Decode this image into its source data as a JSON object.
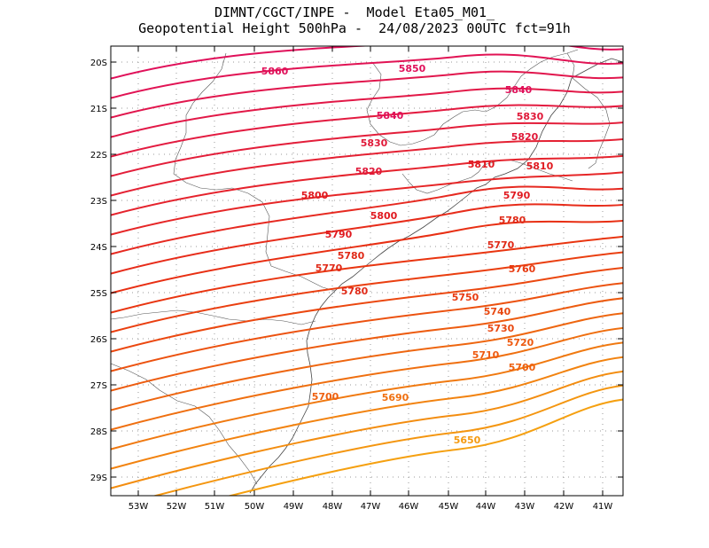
{
  "title": {
    "line1": "DIMNT/CGCT/INPE -  Model Eta05_M01_",
    "line2": "Geopotential Height 500hPa -  24/08/2023 00UTC fct=91h"
  },
  "map_data": {
    "lon_range": [
      -53.6,
      -40.5
    ],
    "lat_range": [
      -29.4,
      -19.8
    ],
    "lat_ticks": [
      "20S",
      "21S",
      "22S",
      "23S",
      "24S",
      "25S",
      "26S",
      "27S",
      "28S",
      "29S"
    ],
    "lon_ticks": [
      "53W",
      "52W",
      "51W",
      "50W",
      "49W",
      "48W",
      "47W",
      "46W",
      "45W",
      "44W",
      "43W",
      "42W",
      "41W"
    ],
    "contour_labels": [
      {
        "text": "5860",
        "color": "#e0105a"
      },
      {
        "text": "5850",
        "color": "#e0105a"
      },
      {
        "text": "5840",
        "color": "#e0105a"
      },
      {
        "text": "5840",
        "color": "#e0105a"
      },
      {
        "text": "5830",
        "color": "#e01838"
      },
      {
        "text": "5830",
        "color": "#e01838"
      },
      {
        "text": "5820",
        "color": "#e01838"
      },
      {
        "text": "5820",
        "color": "#e01838"
      },
      {
        "text": "5810",
        "color": "#e01a20"
      },
      {
        "text": "5810",
        "color": "#e01a20"
      },
      {
        "text": "5800",
        "color": "#e01a20"
      },
      {
        "text": "5800",
        "color": "#e01a20"
      },
      {
        "text": "5790",
        "color": "#e01a20"
      },
      {
        "text": "5790",
        "color": "#e01a20"
      },
      {
        "text": "5780",
        "color": "#e02a18"
      },
      {
        "text": "5780",
        "color": "#e02a18"
      },
      {
        "text": "5780",
        "color": "#e02a18"
      },
      {
        "text": "5770",
        "color": "#e02a18"
      },
      {
        "text": "5770",
        "color": "#e02a18"
      },
      {
        "text": "5760",
        "color": "#e83a10"
      },
      {
        "text": "5750",
        "color": "#e83a10"
      },
      {
        "text": "5740",
        "color": "#e84810"
      },
      {
        "text": "5730",
        "color": "#e84810"
      },
      {
        "text": "5720",
        "color": "#ee5a10"
      },
      {
        "text": "5710",
        "color": "#ee5a10"
      },
      {
        "text": "5700",
        "color": "#ee6010"
      },
      {
        "text": "5700",
        "color": "#ee6010"
      },
      {
        "text": "5690",
        "color": "#f07010"
      },
      {
        "text": "5650",
        "color": "#f59a10"
      }
    ]
  }
}
